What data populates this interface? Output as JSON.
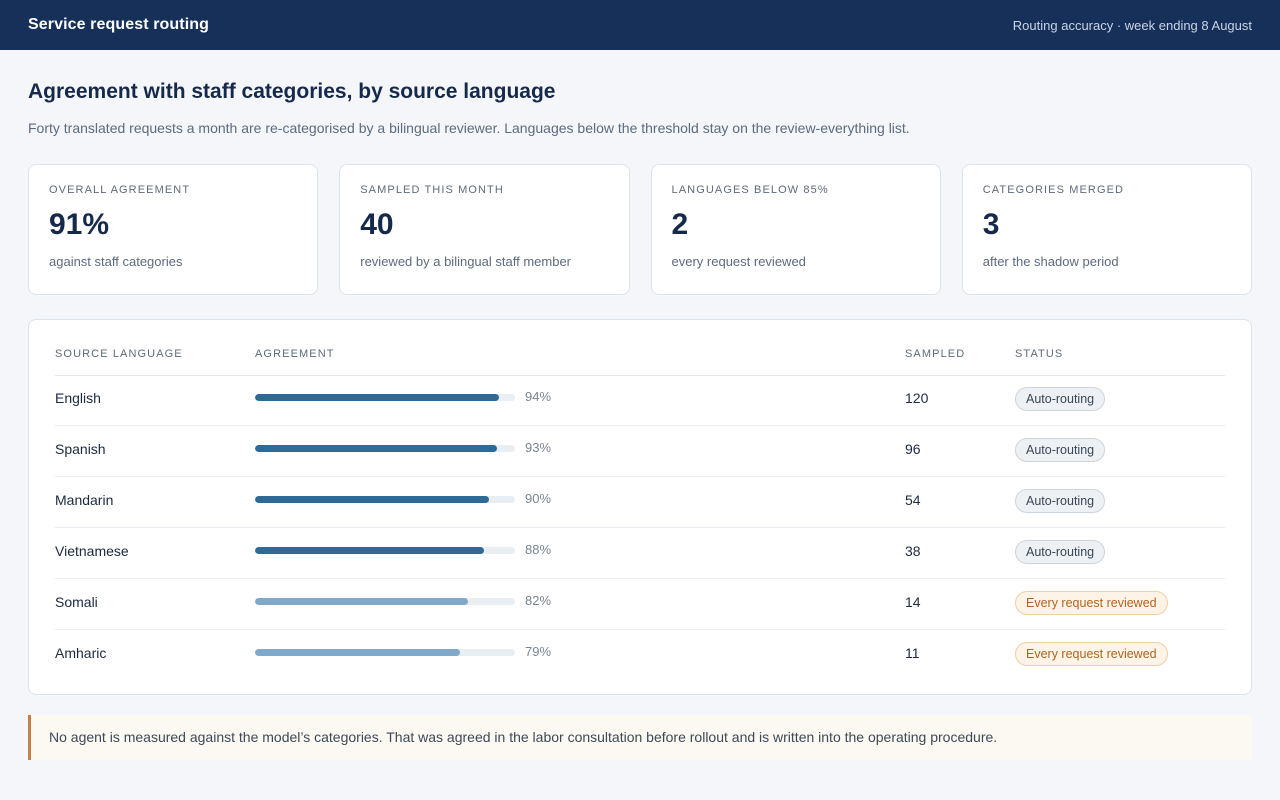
{
  "header": {
    "app_title": "Service request routing",
    "period": "Routing accuracy · week ending 8 August"
  },
  "main": {
    "title": "Agreement with staff categories, by source language",
    "subtitle": "Forty translated requests a month are re-categorised by a bilingual reviewer. Languages below the threshold stay on the review-everything list."
  },
  "kpis": [
    {
      "label": "Overall agreement",
      "value": "91%",
      "note": "against staff categories"
    },
    {
      "label": "Sampled this month",
      "value": "40",
      "note": "reviewed by a bilingual staff member"
    },
    {
      "label": "Languages below 85%",
      "value": "2",
      "note": "every request reviewed"
    },
    {
      "label": "Categories merged",
      "value": "3",
      "note": "after the shadow period"
    }
  ],
  "table": {
    "columns": [
      "Source language",
      "Agreement",
      "Sampled",
      "Status"
    ],
    "rows": [
      {
        "language": "English",
        "agreement": 94,
        "agreement_label": "94%",
        "sampled": "120",
        "status": "Auto-routing",
        "status_kind": "auto"
      },
      {
        "language": "Spanish",
        "agreement": 93,
        "agreement_label": "93%",
        "sampled": "96",
        "status": "Auto-routing",
        "status_kind": "auto"
      },
      {
        "language": "Mandarin",
        "agreement": 90,
        "agreement_label": "90%",
        "sampled": "54",
        "status": "Auto-routing",
        "status_kind": "auto"
      },
      {
        "language": "Vietnamese",
        "agreement": 88,
        "agreement_label": "88%",
        "sampled": "38",
        "status": "Auto-routing",
        "status_kind": "auto"
      },
      {
        "language": "Somali",
        "agreement": 82,
        "agreement_label": "82%",
        "sampled": "14",
        "status": "Every request reviewed",
        "status_kind": "review"
      },
      {
        "language": "Amharic",
        "agreement": 79,
        "agreement_label": "79%",
        "sampled": "11",
        "status": "Every request reviewed",
        "status_kind": "review"
      }
    ]
  },
  "footer_note": "No agent is measured against the model’s categories. That was agreed in the labor consultation before rollout and is written into the operating procedure.",
  "colors": {
    "header_bg": "#16305a",
    "bar_high": "#2f6a96",
    "bar_low": "#7fa8c9",
    "review_accent": "#b0641f"
  }
}
